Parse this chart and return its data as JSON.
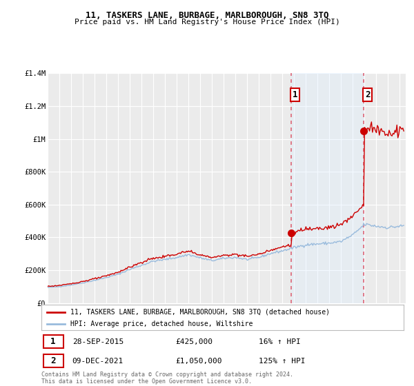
{
  "title": "11, TASKERS LANE, BURBAGE, MARLBOROUGH, SN8 3TQ",
  "subtitle": "Price paid vs. HM Land Registry's House Price Index (HPI)",
  "legend_label_red": "11, TASKERS LANE, BURBAGE, MARLBOROUGH, SN8 3TQ (detached house)",
  "legend_label_blue": "HPI: Average price, detached house, Wiltshire",
  "annotation1_label": "1",
  "annotation1_date": "28-SEP-2015",
  "annotation1_price": "£425,000",
  "annotation1_hpi": "16% ↑ HPI",
  "annotation1_year": 2015.75,
  "annotation1_value": 425000,
  "annotation2_label": "2",
  "annotation2_date": "09-DEC-2021",
  "annotation2_price": "£1,050,000",
  "annotation2_hpi": "125% ↑ HPI",
  "annotation2_year": 2021.92,
  "annotation2_value": 1050000,
  "footer": "Contains HM Land Registry data © Crown copyright and database right 2024.\nThis data is licensed under the Open Government Licence v3.0.",
  "ylim": [
    0,
    1400000
  ],
  "xlim": [
    1995,
    2025.5
  ],
  "background_color": "#ffffff",
  "plot_bg_color": "#ebebeb",
  "grid_color": "#ffffff",
  "red_color": "#cc0000",
  "blue_color": "#99bbdd",
  "shade_color": "#ddeeff",
  "annotation_box_color": "#cc0000",
  "vline_color": "#dd6677"
}
